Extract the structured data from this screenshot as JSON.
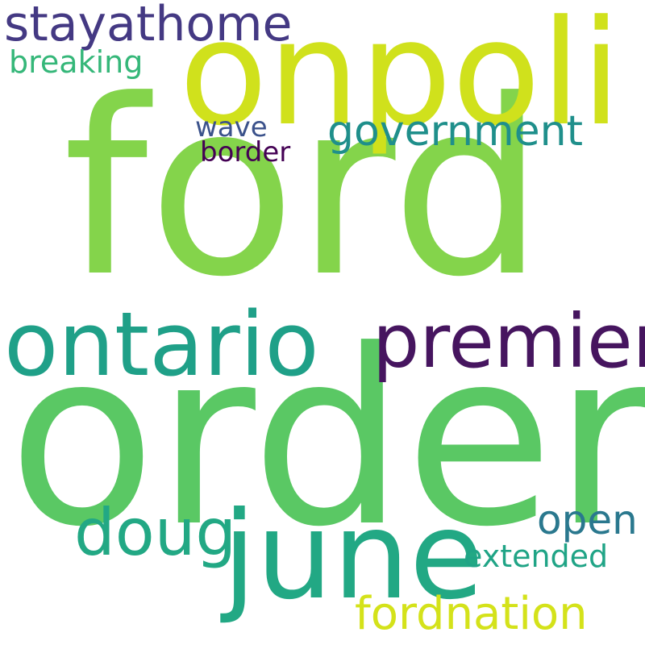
{
  "word_cloud": {
    "background_color": "#ffffff",
    "words": {
      "ford": {
        "text": "ford",
        "color": "#84d44b"
      },
      "order": {
        "text": "order",
        "color": "#5ac864"
      },
      "onpoli": {
        "text": "onpoli",
        "color": "#d0e11c"
      },
      "ontario": {
        "text": "ontario",
        "color": "#1fa088"
      },
      "premier": {
        "text": "premier",
        "color": "#46155f"
      },
      "june": {
        "text": "june",
        "color": "#22a884"
      },
      "doug": {
        "text": "doug",
        "color": "#22a884"
      },
      "stayathome": {
        "text": "stayathome",
        "color": "#443983"
      },
      "government": {
        "text": "government",
        "color": "#1f8f8b"
      },
      "open": {
        "text": "open",
        "color": "#2a788e"
      },
      "fordnation": {
        "text": "fordnation",
        "color": "#d4e21a"
      },
      "extended": {
        "text": "extended",
        "color": "#20a486"
      },
      "breaking": {
        "text": "breaking",
        "color": "#35b779"
      },
      "wave": {
        "text": "wave",
        "color": "#3b528b"
      },
      "border": {
        "text": "border",
        "color": "#440154"
      }
    }
  }
}
